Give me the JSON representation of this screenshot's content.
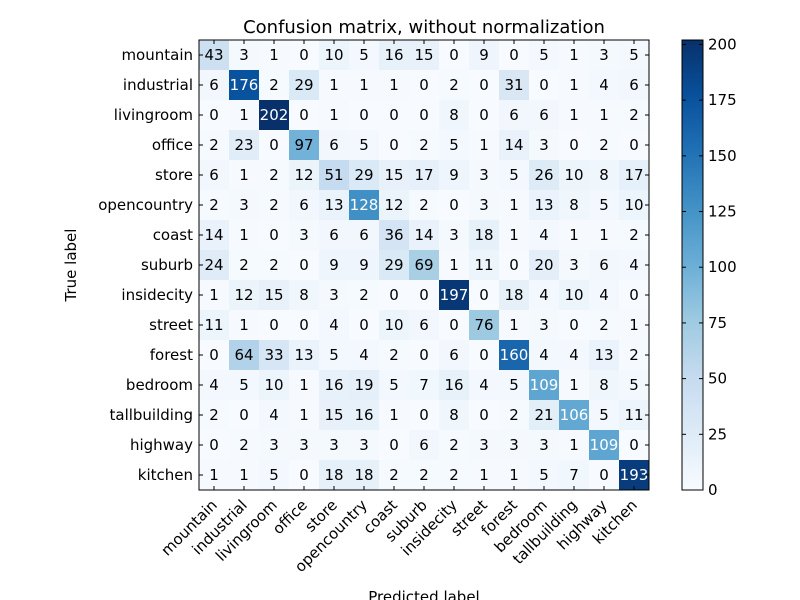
{
  "chart_data": {
    "type": "heatmap",
    "title": "Confusion matrix, without normalization",
    "xlabel": "Predicted label",
    "ylabel": "True label",
    "labels": [
      "mountain",
      "industrial",
      "livingroom",
      "office",
      "store",
      "opencountry",
      "coast",
      "suburb",
      "insidecity",
      "street",
      "forest",
      "bedroom",
      "tallbuilding",
      "highway",
      "kitchen"
    ],
    "matrix": [
      [
        43,
        3,
        1,
        0,
        10,
        5,
        16,
        15,
        0,
        9,
        0,
        5,
        1,
        3,
        5
      ],
      [
        6,
        176,
        2,
        29,
        1,
        1,
        1,
        0,
        2,
        0,
        31,
        0,
        1,
        4,
        6
      ],
      [
        0,
        1,
        202,
        0,
        1,
        0,
        0,
        0,
        8,
        0,
        6,
        6,
        1,
        1,
        2
      ],
      [
        2,
        23,
        0,
        97,
        6,
        5,
        0,
        2,
        5,
        1,
        14,
        3,
        0,
        2,
        0
      ],
      [
        6,
        1,
        2,
        12,
        51,
        29,
        15,
        17,
        9,
        3,
        5,
        26,
        10,
        8,
        17
      ],
      [
        2,
        3,
        2,
        6,
        13,
        128,
        12,
        2,
        0,
        3,
        1,
        13,
        8,
        5,
        10
      ],
      [
        14,
        1,
        0,
        3,
        6,
        6,
        36,
        14,
        3,
        18,
        1,
        4,
        1,
        1,
        2
      ],
      [
        24,
        2,
        2,
        0,
        9,
        9,
        29,
        69,
        1,
        11,
        0,
        20,
        3,
        6,
        4
      ],
      [
        1,
        12,
        15,
        8,
        3,
        2,
        0,
        0,
        197,
        0,
        18,
        4,
        10,
        4,
        0
      ],
      [
        11,
        1,
        0,
        0,
        4,
        0,
        10,
        6,
        0,
        76,
        1,
        3,
        0,
        2,
        1
      ],
      [
        0,
        64,
        33,
        13,
        5,
        4,
        2,
        0,
        6,
        0,
        160,
        4,
        4,
        13,
        2
      ],
      [
        4,
        5,
        10,
        1,
        16,
        19,
        5,
        7,
        16,
        4,
        5,
        109,
        1,
        8,
        5
      ],
      [
        2,
        0,
        4,
        1,
        15,
        16,
        1,
        0,
        8,
        0,
        2,
        21,
        106,
        5,
        11
      ],
      [
        0,
        2,
        3,
        3,
        3,
        3,
        0,
        6,
        2,
        3,
        3,
        3,
        1,
        109,
        0
      ],
      [
        1,
        1,
        5,
        0,
        18,
        18,
        2,
        2,
        2,
        1,
        1,
        5,
        7,
        0,
        193
      ]
    ],
    "colormap": "Blues",
    "colorbar": {
      "min": 0,
      "max": 202,
      "ticks": [
        0,
        25,
        50,
        75,
        100,
        125,
        150,
        175,
        200
      ]
    },
    "colors": {
      "low": "#f7fbff",
      "high": "#08306b"
    }
  }
}
